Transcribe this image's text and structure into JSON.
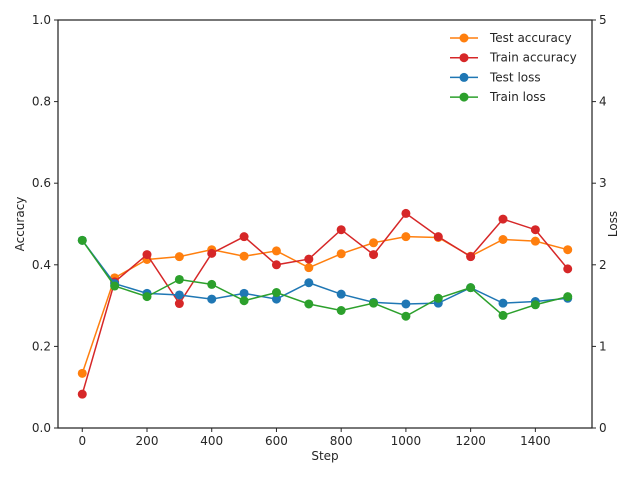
{
  "chart_data": {
    "type": "line",
    "x": [
      0,
      100,
      200,
      300,
      400,
      500,
      600,
      700,
      800,
      900,
      1000,
      1100,
      1200,
      1300,
      1400,
      1500
    ],
    "xlabel": "Step",
    "xlim": [
      -75,
      1575
    ],
    "xticks": [
      0,
      200,
      400,
      600,
      800,
      1000,
      1200,
      1400
    ],
    "ylabel": "Accuracy",
    "ylim": [
      0,
      1.0
    ],
    "yticks": [
      "0.0",
      "0.2",
      "0.4",
      "0.6",
      "0.8",
      "1.0"
    ],
    "y2label": "Loss",
    "y2lim": [
      0,
      5
    ],
    "y2ticks": [
      "0",
      "1",
      "2",
      "3",
      "4",
      "5"
    ],
    "grid": false,
    "legend_position": "top-right",
    "series": [
      {
        "name": "Test accuracy",
        "axis": "left",
        "color": "#ff7f0e",
        "values": [
          0.134,
          0.368,
          0.413,
          0.42,
          0.437,
          0.421,
          0.434,
          0.393,
          0.427,
          0.454,
          0.469,
          0.467,
          0.421,
          0.462,
          0.458,
          0.437
        ]
      },
      {
        "name": "Train accuracy",
        "axis": "left",
        "color": "#d62728",
        "values": [
          0.083,
          0.358,
          0.425,
          0.305,
          0.428,
          0.469,
          0.4,
          0.414,
          0.486,
          0.425,
          0.526,
          0.469,
          0.42,
          0.512,
          0.486,
          0.39
        ]
      },
      {
        "name": "Test loss",
        "axis": "right",
        "color": "#1f77b4",
        "values": [
          2.3,
          1.77,
          1.65,
          1.63,
          1.58,
          1.65,
          1.58,
          1.78,
          1.64,
          1.54,
          1.52,
          1.53,
          1.72,
          1.53,
          1.55,
          1.59
        ]
      },
      {
        "name": "Train loss",
        "axis": "right",
        "color": "#2ca02c",
        "values": [
          2.3,
          1.74,
          1.61,
          1.82,
          1.76,
          1.56,
          1.66,
          1.52,
          1.44,
          1.53,
          1.37,
          1.59,
          1.72,
          1.38,
          1.51,
          1.61
        ]
      }
    ]
  }
}
